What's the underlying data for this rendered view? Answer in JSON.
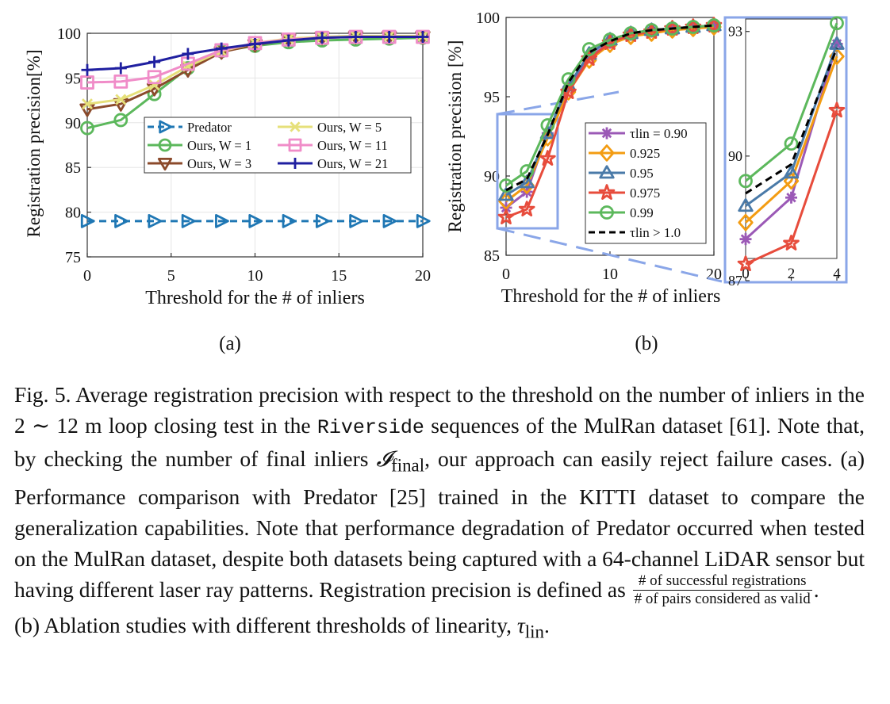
{
  "chart_data": [
    {
      "id": "a",
      "type": "line",
      "panel_label": "(a)",
      "xlabel": "Threshold for the # of inliers",
      "ylabel": "Registration precision[%]",
      "xlim": [
        0,
        20
      ],
      "ylim": [
        75,
        100
      ],
      "xticks": [
        "0",
        "5",
        "10",
        "15",
        "20"
      ],
      "yticks": [
        "75",
        "80",
        "85",
        "90",
        "95",
        "100"
      ],
      "grid": true,
      "legend_position": "center",
      "x": [
        0,
        2,
        4,
        6,
        8,
        10,
        12,
        14,
        16,
        18,
        20
      ],
      "series": [
        {
          "name": "Predator",
          "color": "#1f77b4",
          "marker": "triangle-right",
          "dashed": true,
          "values": [
            79.0,
            79.0,
            79.0,
            79.0,
            79.0,
            79.0,
            79.0,
            79.0,
            79.0,
            79.0,
            79.0
          ]
        },
        {
          "name": "Ours, W = 1",
          "color": "#5cb85c",
          "marker": "circle",
          "values": [
            89.4,
            90.3,
            93.2,
            96.1,
            98.0,
            98.6,
            99.0,
            99.2,
            99.3,
            99.4,
            99.5
          ]
        },
        {
          "name": "Ours, W = 3",
          "color": "#8b4a2b",
          "marker": "triangle-down",
          "values": [
            91.5,
            92.1,
            93.8,
            95.9,
            97.9,
            98.7,
            99.3,
            99.5,
            99.6,
            99.6,
            99.6
          ]
        },
        {
          "name": "Ours, W = 5",
          "color": "#e6e07a",
          "marker": "x",
          "values": [
            92.1,
            92.6,
            94.2,
            96.3,
            98.0,
            98.9,
            99.4,
            99.6,
            99.7,
            99.7,
            99.7
          ]
        },
        {
          "name": "Ours, W = 11",
          "color": "#f08cc8",
          "marker": "square",
          "values": [
            94.5,
            94.6,
            95.1,
            96.6,
            98.1,
            98.9,
            99.3,
            99.5,
            99.6,
            99.6,
            99.6
          ]
        },
        {
          "name": "Ours, W = 21",
          "color": "#1f1fa0",
          "marker": "plus",
          "values": [
            95.9,
            96.1,
            96.8,
            97.7,
            98.3,
            98.8,
            99.2,
            99.5,
            99.6,
            99.6,
            99.6
          ]
        }
      ]
    },
    {
      "id": "b",
      "type": "line",
      "panel_label": "(b)",
      "xlabel": "Threshold for the # of inliers",
      "ylabel": "Registration precision [%]",
      "xlim": [
        0,
        20
      ],
      "ylim": [
        85,
        100
      ],
      "xticks": [
        "0",
        "10",
        "20"
      ],
      "yticks": [
        "85",
        "90",
        "95",
        "100"
      ],
      "grid": false,
      "legend_position": "center-right",
      "x": [
        0,
        2,
        4,
        6,
        8,
        10,
        12,
        14,
        16,
        18,
        20
      ],
      "series": [
        {
          "name": "0.90",
          "legend_prefix": "τlin = ",
          "color": "#9b59b6",
          "marker": "asterisk",
          "values": [
            88.0,
            89.0,
            92.7,
            95.6,
            97.5,
            98.4,
            98.9,
            99.1,
            99.3,
            99.4,
            99.5
          ]
        },
        {
          "name": "0.925",
          "color": "#f39c12",
          "marker": "diamond",
          "values": [
            88.4,
            89.4,
            92.4,
            95.3,
            97.3,
            98.3,
            98.8,
            99.0,
            99.2,
            99.3,
            99.4
          ]
        },
        {
          "name": "0.95",
          "color": "#4a7aa8",
          "marker": "triangle-up",
          "values": [
            88.8,
            89.6,
            92.7,
            95.7,
            97.7,
            98.6,
            99.0,
            99.2,
            99.3,
            99.4,
            99.5
          ]
        },
        {
          "name": "0.975",
          "color": "#e74c3c",
          "marker": "star",
          "values": [
            87.4,
            87.9,
            91.1,
            95.3,
            97.4,
            98.4,
            98.9,
            99.1,
            99.3,
            99.4,
            99.5
          ]
        },
        {
          "name": "0.99",
          "color": "#5cb85c",
          "marker": "circle",
          "values": [
            89.4,
            90.3,
            93.2,
            96.1,
            98.0,
            98.6,
            99.0,
            99.2,
            99.3,
            99.4,
            99.5
          ]
        },
        {
          "name": "1.0",
          "legend_prefix": "τlin > ",
          "color": "#000000",
          "marker": "none",
          "dashed": true,
          "values": [
            89.1,
            89.8,
            92.6,
            95.9,
            97.8,
            98.5,
            99.0,
            99.2,
            99.3,
            99.4,
            99.5
          ]
        }
      ],
      "inset": {
        "xlim": [
          0,
          4
        ],
        "ylim": [
          87,
          93.3
        ],
        "xticks": [
          "0",
          "2",
          "4"
        ],
        "yticks": [
          "87",
          "90",
          "93"
        ],
        "highlight_color": "#8aa6e8"
      }
    }
  ],
  "caption": {
    "fig_label": "Fig. 5.",
    "p1": " Average registration precision with respect to the threshold on the number of inliers in the 2 ∼ 12 m loop closing test in the ",
    "dataset_mono": "Riverside",
    "p2": " sequences of the MulRan dataset [61]. Note that, by checking the number of final inliers ",
    "sym_I": "𝓘",
    "sym_I_sub": "final",
    "p3": ", our approach can easily reject failure cases. (a) Performance comparison with Predator [25] trained in the KITTI dataset to compare the generalization capabilities. Note that performance degradation of Predator occurred when tested on the MulRan dataset, despite both datasets being captured with a 64-channel LiDAR sensor but having different laser ray patterns. Registration precision is defined as ",
    "frac_num": "# of successful registrations",
    "frac_den": "# of pairs considered as valid",
    "p4": ".",
    "p5": "(b) Ablation studies with different thresholds of linearity, ",
    "tau": "τ",
    "tau_sub": "lin",
    "p6": "."
  }
}
